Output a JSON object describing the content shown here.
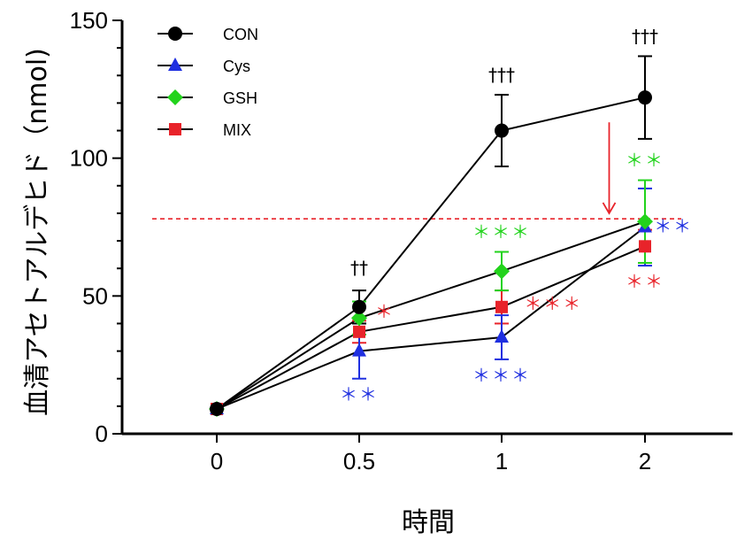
{
  "chart_data": {
    "type": "line",
    "xlabel": "時間",
    "ylabel": "血清アセトアルデヒド（nmol)",
    "x_categories": [
      "0",
      "0.5",
      "1",
      "2"
    ],
    "ylim": [
      0,
      150
    ],
    "yticks": [
      "0",
      "50",
      "100",
      "150"
    ],
    "legend_position": "top-left",
    "reference_line": {
      "y": 78,
      "color": "#e8232a",
      "style": "dashed"
    },
    "series": [
      {
        "name": "CON",
        "marker": "circle",
        "color": "#000000",
        "values": [
          9,
          46,
          110,
          122
        ],
        "err": [
          0,
          6,
          13,
          15
        ]
      },
      {
        "name": "Cys",
        "marker": "triangle",
        "color": "#1f2fe0",
        "values": [
          9,
          30,
          35,
          75
        ],
        "err": [
          0,
          10,
          8,
          14
        ]
      },
      {
        "name": "GSH",
        "marker": "diamond",
        "color": "#22d31c",
        "values": [
          9,
          42,
          59,
          77
        ],
        "err": [
          0,
          6,
          7,
          15
        ]
      },
      {
        "name": "MIX",
        "marker": "square",
        "color": "#e8232a",
        "values": [
          9,
          37,
          46,
          68
        ],
        "err": [
          0,
          4,
          6,
          6
        ]
      }
    ],
    "annotations": [
      {
        "text": "††",
        "x": 1,
        "y": 58,
        "color": "#000000"
      },
      {
        "text": "†††",
        "x": 2,
        "y": 128,
        "color": "#000000"
      },
      {
        "text": "†††",
        "x": 3,
        "y": 142,
        "color": "#000000"
      },
      {
        "text": "＊＊",
        "x": 1,
        "y": 12,
        "color": "#1f2fe0"
      },
      {
        "text": "＊",
        "x": 1.18,
        "y": 42,
        "color": "#e8232a"
      },
      {
        "text": "＊＊＊",
        "x": 2,
        "y": 71,
        "color": "#22d31c"
      },
      {
        "text": "＊＊＊",
        "x": 2.36,
        "y": 45,
        "color": "#e8232a"
      },
      {
        "text": "＊＊＊",
        "x": 2,
        "y": 19,
        "color": "#1f2fe0"
      },
      {
        "text": "＊＊",
        "x": 3,
        "y": 97,
        "color": "#22d31c"
      },
      {
        "text": "＊＊",
        "x": 3.2,
        "y": 73,
        "color": "#1f2fe0"
      },
      {
        "text": "＊＊",
        "x": 3,
        "y": 53,
        "color": "#e8232a"
      }
    ],
    "arrow": {
      "x": 2.75,
      "y_from": 113,
      "y_to": 80,
      "color": "#e8232a"
    }
  }
}
